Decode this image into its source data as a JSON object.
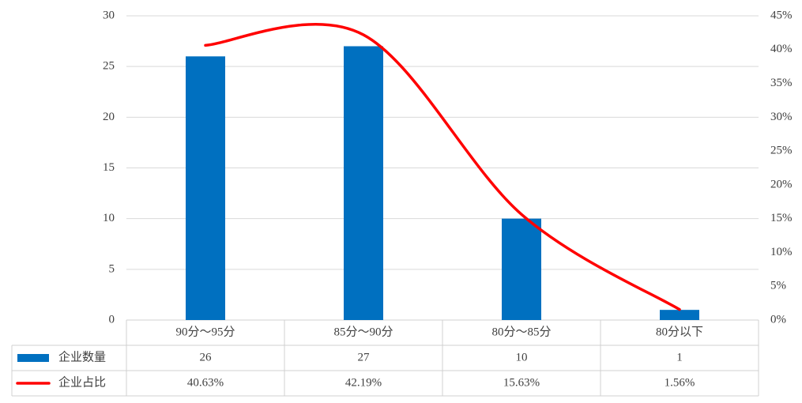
{
  "chart_data": {
    "type": "bar",
    "categories": [
      "90分～95分",
      "85分～90分",
      "80分～85分",
      "80分以下"
    ],
    "series": [
      {
        "name": "企业数量",
        "type": "bar",
        "color": "#0070c0",
        "values": [
          26,
          27,
          10,
          1
        ]
      },
      {
        "name": "企业占比",
        "type": "line",
        "axis": "y2",
        "color": "#ff0000",
        "values": [
          40.63,
          42.19,
          15.63,
          1.56
        ],
        "value_labels": [
          "40.63%",
          "42.19%",
          "15.63%",
          "1.56%"
        ]
      }
    ],
    "ylim": [
      0,
      30
    ],
    "yticks": [
      0,
      5,
      10,
      15,
      20,
      25,
      30
    ],
    "y2lim": [
      0,
      45
    ],
    "y2ticks": [
      {
        "value": 0,
        "label": "0%"
      },
      {
        "value": 5,
        "label": "5%"
      },
      {
        "value": 10,
        "label": "10%"
      },
      {
        "value": 15,
        "label": "15%"
      },
      {
        "value": 20,
        "label": "20%"
      },
      {
        "value": 25,
        "label": "25%"
      },
      {
        "value": 30,
        "label": "30%"
      },
      {
        "value": 35,
        "label": "35%"
      },
      {
        "value": 40,
        "label": "40%"
      },
      {
        "value": 45,
        "label": "45%"
      }
    ],
    "grid": true,
    "data_table": true
  }
}
